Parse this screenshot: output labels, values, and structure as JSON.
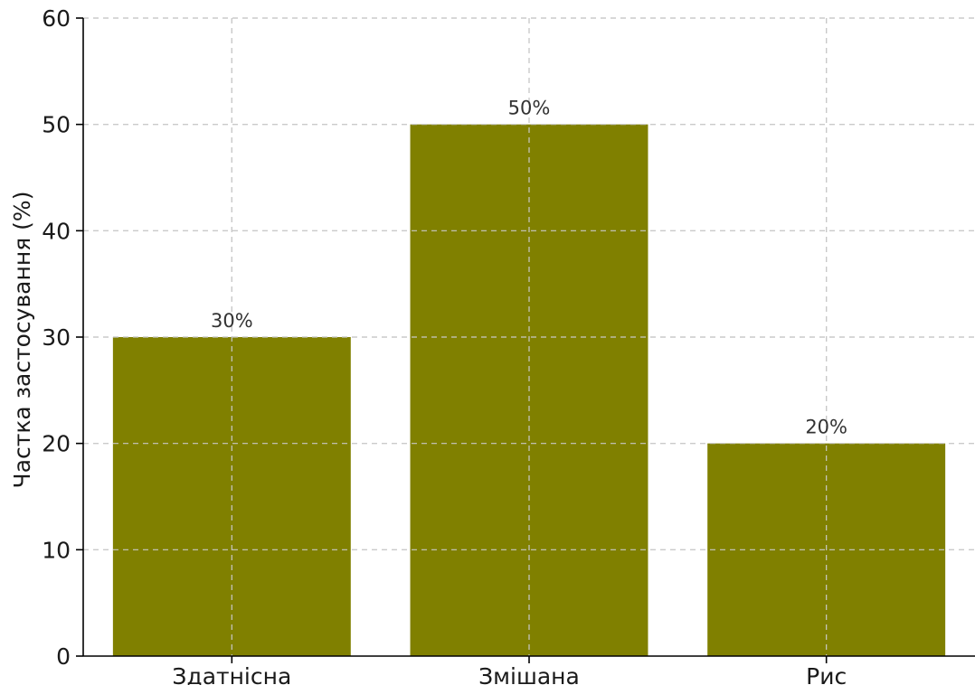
{
  "chart_data": {
    "type": "bar",
    "title": "",
    "xlabel": "",
    "ylabel": "Частка застосування (%)",
    "categories": [
      "Здатнісна",
      "Змішана",
      "Рис"
    ],
    "values": [
      30,
      50,
      20
    ],
    "data_labels": [
      "30%",
      "50%",
      "20%"
    ],
    "ylim": [
      0,
      60
    ],
    "yticks": [
      0,
      10,
      20,
      30,
      40,
      50,
      60
    ],
    "grid": true,
    "bar_color": "#808000"
  }
}
